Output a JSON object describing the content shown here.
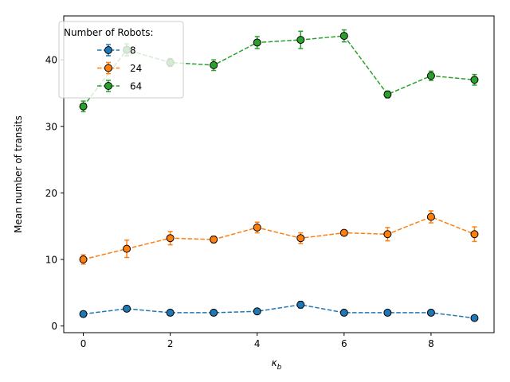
{
  "chart_data": {
    "type": "line",
    "xlabel_main": "κ",
    "xlabel_sub": "b",
    "ylabel": "Mean number of transits",
    "xlim": [
      -0.45,
      9.45
    ],
    "ylim": [
      -1,
      46.6
    ],
    "xticks": [
      0,
      2,
      4,
      6,
      8
    ],
    "yticks": [
      0,
      10,
      20,
      30,
      40
    ],
    "grid": false,
    "legend": {
      "title": "Number of Robots:",
      "position": "upper-left"
    },
    "x": [
      0,
      1,
      2,
      3,
      4,
      5,
      6,
      7,
      8,
      9
    ],
    "series": [
      {
        "name": "8",
        "color": "#1f77b4",
        "values": [
          1.8,
          2.6,
          2.0,
          2.0,
          2.2,
          3.2,
          2.0,
          2.0,
          2.0,
          1.2
        ],
        "errors": [
          0.3,
          0.4,
          0.3,
          0.3,
          0.3,
          0.5,
          0.3,
          0.3,
          0.3,
          0.2
        ]
      },
      {
        "name": "24",
        "color": "#ff7f0e",
        "values": [
          10.0,
          11.6,
          13.2,
          13.0,
          14.8,
          13.2,
          14.0,
          13.8,
          16.4,
          13.8
        ],
        "errors": [
          0.7,
          1.3,
          1.0,
          0.5,
          0.8,
          0.8,
          0.4,
          1.0,
          0.9,
          1.1
        ]
      },
      {
        "name": "64",
        "color": "#2ca02c",
        "values": [
          33.0,
          41.5,
          39.6,
          39.2,
          42.6,
          43.0,
          43.6,
          34.8,
          37.6,
          37.0
        ],
        "errors": [
          0.8,
          0.9,
          0.6,
          0.8,
          0.9,
          1.3,
          0.9,
          0.5,
          0.7,
          0.8
        ]
      }
    ]
  }
}
